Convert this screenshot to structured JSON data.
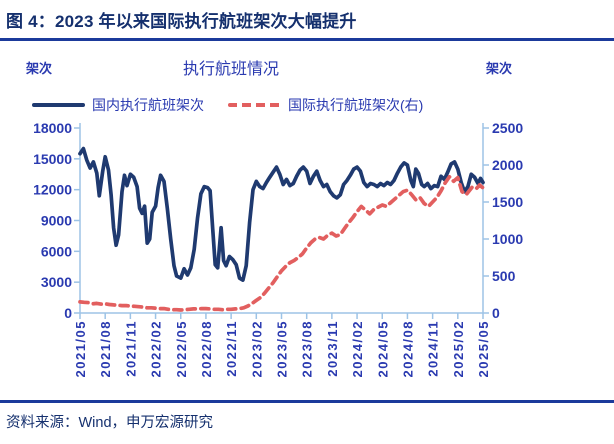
{
  "page": {
    "figure_title": "图 4：2023 年以来国际执行航班架次大幅提升",
    "source_note": "资料来源：Wind，申万宏源研究"
  },
  "colors": {
    "title_navy": "#15306E",
    "rule_navy": "#1B3A9B",
    "line_navy": "#1F3A70",
    "line_red": "#E25F5F",
    "label_blue": "#2A3AB0",
    "axis_light_blue": "#9DC3E6"
  },
  "chart_data": {
    "type": "line",
    "title": "执行航班情况",
    "legend_position": "top",
    "grid": false,
    "x_ticks": [
      "2021/05",
      "2021/08",
      "2021/11",
      "2022/02",
      "2022/05",
      "2022/08",
      "2022/11",
      "2023/02",
      "2023/05",
      "2023/08",
      "2023/11",
      "2024/02",
      "2024/05",
      "2024/08",
      "2024/11",
      "2025/02",
      "2025/05"
    ],
    "months_per_tick": 3,
    "x_range_months": [
      0,
      48
    ],
    "axes": {
      "left": {
        "unit": "架次",
        "min": 0,
        "max": 18000,
        "ticks": [
          0,
          3000,
          6000,
          9000,
          12000,
          15000,
          18000
        ]
      },
      "right": {
        "unit": "架次",
        "min": 0,
        "max": 2500,
        "ticks": [
          0,
          500,
          1000,
          1500,
          2000,
          2500
        ]
      }
    },
    "series": [
      {
        "name": "国内执行航班架次",
        "axis": "left",
        "style": "solid",
        "color": "#1F3A70",
        "points": [
          [
            0,
            15500
          ],
          [
            0.4,
            16000
          ],
          [
            0.8,
            14900
          ],
          [
            1.2,
            14100
          ],
          [
            1.6,
            14700
          ],
          [
            2,
            13600
          ],
          [
            2.3,
            11400
          ],
          [
            2.7,
            13800
          ],
          [
            3,
            15200
          ],
          [
            3.4,
            13900
          ],
          [
            3.7,
            11500
          ],
          [
            4,
            8300
          ],
          [
            4.3,
            6600
          ],
          [
            4.6,
            7600
          ],
          [
            5,
            11800
          ],
          [
            5.3,
            13400
          ],
          [
            5.6,
            12400
          ],
          [
            6,
            13500
          ],
          [
            6.4,
            13200
          ],
          [
            6.8,
            12300
          ],
          [
            7.1,
            10200
          ],
          [
            7.4,
            9700
          ],
          [
            7.7,
            10400
          ],
          [
            8,
            6800
          ],
          [
            8.3,
            7200
          ],
          [
            8.6,
            9800
          ],
          [
            9,
            10400
          ],
          [
            9.3,
            12200
          ],
          [
            9.6,
            13400
          ],
          [
            10,
            12800
          ],
          [
            10.4,
            10200
          ],
          [
            10.8,
            7200
          ],
          [
            11.2,
            4600
          ],
          [
            11.5,
            3600
          ],
          [
            12,
            3400
          ],
          [
            12.4,
            4300
          ],
          [
            12.8,
            3700
          ],
          [
            13.2,
            4400
          ],
          [
            13.6,
            6200
          ],
          [
            14,
            9200
          ],
          [
            14.4,
            11600
          ],
          [
            14.8,
            12300
          ],
          [
            15.2,
            12200
          ],
          [
            15.5,
            11900
          ],
          [
            15.8,
            8200
          ],
          [
            16.1,
            4700
          ],
          [
            16.4,
            4400
          ],
          [
            16.8,
            8300
          ],
          [
            17.1,
            5100
          ],
          [
            17.4,
            4600
          ],
          [
            17.8,
            5500
          ],
          [
            18.2,
            5200
          ],
          [
            18.6,
            4700
          ],
          [
            19,
            3400
          ],
          [
            19.4,
            3200
          ],
          [
            19.8,
            4600
          ],
          [
            20.2,
            8800
          ],
          [
            20.6,
            12000
          ],
          [
            21,
            12800
          ],
          [
            21.4,
            12300
          ],
          [
            21.8,
            12100
          ],
          [
            22.2,
            12700
          ],
          [
            22.6,
            13200
          ],
          [
            23,
            13700
          ],
          [
            23.4,
            14200
          ],
          [
            23.8,
            13500
          ],
          [
            24.2,
            12500
          ],
          [
            24.6,
            13000
          ],
          [
            25,
            12400
          ],
          [
            25.4,
            12600
          ],
          [
            25.8,
            13300
          ],
          [
            26.2,
            13900
          ],
          [
            26.6,
            14200
          ],
          [
            27,
            13800
          ],
          [
            27.4,
            12600
          ],
          [
            27.8,
            13300
          ],
          [
            28.2,
            13800
          ],
          [
            28.6,
            12900
          ],
          [
            29,
            12300
          ],
          [
            29.4,
            12500
          ],
          [
            29.8,
            11800
          ],
          [
            30.2,
            11400
          ],
          [
            30.6,
            11200
          ],
          [
            31,
            11500
          ],
          [
            31.4,
            12500
          ],
          [
            31.8,
            12900
          ],
          [
            32.2,
            13400
          ],
          [
            32.6,
            14000
          ],
          [
            33,
            14200
          ],
          [
            33.4,
            13800
          ],
          [
            33.8,
            12700
          ],
          [
            34.2,
            12300
          ],
          [
            34.6,
            12600
          ],
          [
            35,
            12500
          ],
          [
            35.4,
            12300
          ],
          [
            35.8,
            12600
          ],
          [
            36.2,
            12400
          ],
          [
            36.6,
            12700
          ],
          [
            37,
            12500
          ],
          [
            37.4,
            12900
          ],
          [
            37.8,
            13600
          ],
          [
            38.2,
            14200
          ],
          [
            38.6,
            14600
          ],
          [
            39,
            14400
          ],
          [
            39.4,
            12900
          ],
          [
            39.7,
            12300
          ],
          [
            40,
            14000
          ],
          [
            40.3,
            13600
          ],
          [
            40.7,
            12500
          ],
          [
            41,
            12300
          ],
          [
            41.4,
            12600
          ],
          [
            41.8,
            12100
          ],
          [
            42.2,
            12400
          ],
          [
            42.6,
            12300
          ],
          [
            43,
            13300
          ],
          [
            43.4,
            13000
          ],
          [
            43.8,
            13700
          ],
          [
            44.2,
            14500
          ],
          [
            44.6,
            14700
          ],
          [
            45,
            14000
          ],
          [
            45.4,
            12700
          ],
          [
            45.8,
            11800
          ],
          [
            46.2,
            12300
          ],
          [
            46.6,
            13500
          ],
          [
            47,
            13200
          ],
          [
            47.4,
            12600
          ],
          [
            47.7,
            13100
          ],
          [
            48,
            12700
          ]
        ]
      },
      {
        "name": "国际执行航班架次(右)",
        "axis": "right",
        "style": "dashed",
        "color": "#E25F5F",
        "points": [
          [
            0,
            150
          ],
          [
            0.5,
            145
          ],
          [
            1,
            140
          ],
          [
            1.5,
            125
          ],
          [
            2,
            130
          ],
          [
            2.5,
            120
          ],
          [
            3,
            125
          ],
          [
            3.5,
            115
          ],
          [
            4,
            110
          ],
          [
            4.5,
            105
          ],
          [
            5,
            100
          ],
          [
            5.5,
            100
          ],
          [
            6,
            95
          ],
          [
            6.5,
            90
          ],
          [
            7,
            85
          ],
          [
            7.5,
            80
          ],
          [
            8,
            70
          ],
          [
            8.5,
            70
          ],
          [
            9,
            65
          ],
          [
            9.5,
            60
          ],
          [
            10,
            60
          ],
          [
            10.5,
            50
          ],
          [
            11,
            45
          ],
          [
            11.5,
            45
          ],
          [
            12,
            40
          ],
          [
            12.5,
            45
          ],
          [
            13,
            50
          ],
          [
            13.5,
            55
          ],
          [
            14,
            55
          ],
          [
            14.5,
            60
          ],
          [
            15,
            60
          ],
          [
            15.5,
            55
          ],
          [
            16,
            50
          ],
          [
            16.5,
            50
          ],
          [
            17,
            45
          ],
          [
            17.5,
            50
          ],
          [
            18,
            50
          ],
          [
            18.5,
            55
          ],
          [
            19,
            60
          ],
          [
            19.5,
            70
          ],
          [
            20,
            95
          ],
          [
            20.5,
            130
          ],
          [
            21,
            170
          ],
          [
            21.5,
            210
          ],
          [
            22,
            270
          ],
          [
            22.5,
            340
          ],
          [
            23,
            410
          ],
          [
            23.5,
            490
          ],
          [
            24,
            570
          ],
          [
            24.5,
            630
          ],
          [
            25,
            680
          ],
          [
            25.5,
            710
          ],
          [
            26,
            750
          ],
          [
            26.5,
            800
          ],
          [
            27,
            880
          ],
          [
            27.5,
            950
          ],
          [
            28,
            1000
          ],
          [
            28.5,
            1020
          ],
          [
            29,
            1000
          ],
          [
            29.5,
            1050
          ],
          [
            30,
            1080
          ],
          [
            30.5,
            1040
          ],
          [
            31,
            1060
          ],
          [
            31.5,
            1140
          ],
          [
            32,
            1220
          ],
          [
            32.5,
            1290
          ],
          [
            33,
            1370
          ],
          [
            33.5,
            1440
          ],
          [
            34,
            1390
          ],
          [
            34.5,
            1340
          ],
          [
            35,
            1400
          ],
          [
            35.5,
            1430
          ],
          [
            36,
            1460
          ],
          [
            36.5,
            1440
          ],
          [
            37,
            1490
          ],
          [
            37.5,
            1540
          ],
          [
            38,
            1590
          ],
          [
            38.5,
            1640
          ],
          [
            39,
            1660
          ],
          [
            39.5,
            1600
          ],
          [
            40,
            1530
          ],
          [
            40.5,
            1560
          ],
          [
            41,
            1480
          ],
          [
            41.5,
            1440
          ],
          [
            42,
            1500
          ],
          [
            42.5,
            1560
          ],
          [
            43,
            1650
          ],
          [
            43.5,
            1760
          ],
          [
            44,
            1840
          ],
          [
            44.5,
            1780
          ],
          [
            45,
            1830
          ],
          [
            45.5,
            1640
          ],
          [
            46,
            1600
          ],
          [
            46.7,
            1700
          ],
          [
            47.2,
            1680
          ],
          [
            47.6,
            1730
          ],
          [
            48,
            1690
          ]
        ]
      }
    ]
  }
}
